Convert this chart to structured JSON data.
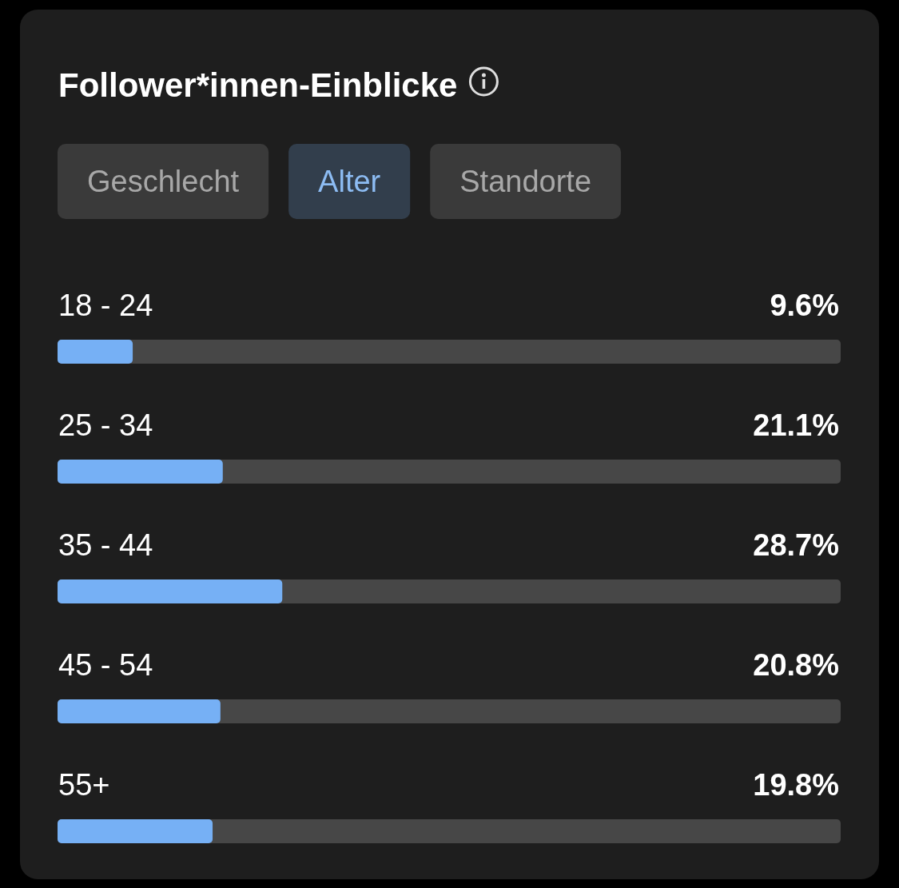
{
  "chart_data": {
    "type": "bar",
    "orientation": "horizontal",
    "title": "Follower*innen-Einblicke",
    "annotations": [
      "Geschlecht",
      "Alter",
      "Standorte"
    ],
    "categories": [
      "18 - 24",
      "25 - 34",
      "35 - 44",
      "45 - 54",
      "55+"
    ],
    "values": [
      9.6,
      21.1,
      28.7,
      20.8,
      19.8
    ],
    "value_labels": [
      "9.6%",
      "21.1%",
      "28.7%",
      "20.8%",
      "19.8%"
    ],
    "color": "#76b0f5",
    "xlim": [
      0,
      100
    ]
  }
}
